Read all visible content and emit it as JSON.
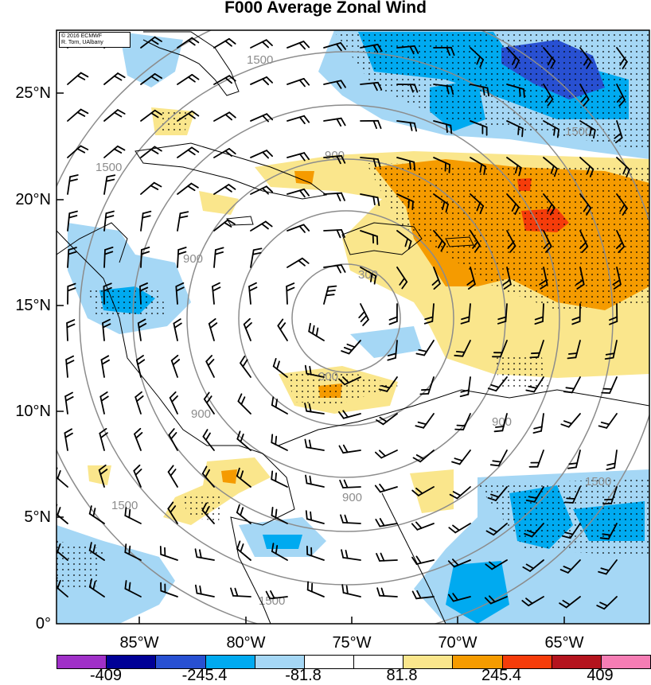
{
  "title": "F000 Average Zonal Wind",
  "credit": [
    "© 2016 ECMWF",
    "R. Torn, UAlbany"
  ],
  "map": {
    "lat_labels": [
      "25°N",
      "20°N",
      "15°N",
      "10°N",
      "5°N",
      "0°"
    ],
    "lon_labels": [
      "85°W",
      "80°W",
      "75°W",
      "70°W",
      "65°W"
    ],
    "range_ring_labels": [
      "300",
      "900",
      "1500"
    ],
    "colors": {
      "land_outline": "#000000",
      "range_ring": "#8c8c8c"
    }
  },
  "colorbar": {
    "labels": [
      "-409",
      "-245.4",
      "-81.8",
      "81.8",
      "245.4",
      "409"
    ],
    "colors": [
      "#a030c8",
      "#000096",
      "#2850d2",
      "#00aaf0",
      "#a5d7f5",
      "#ffffff",
      "#ffffff",
      "#fae68c",
      "#f59b00",
      "#f53c0a",
      "#b4141e",
      "#f57db4"
    ]
  }
}
